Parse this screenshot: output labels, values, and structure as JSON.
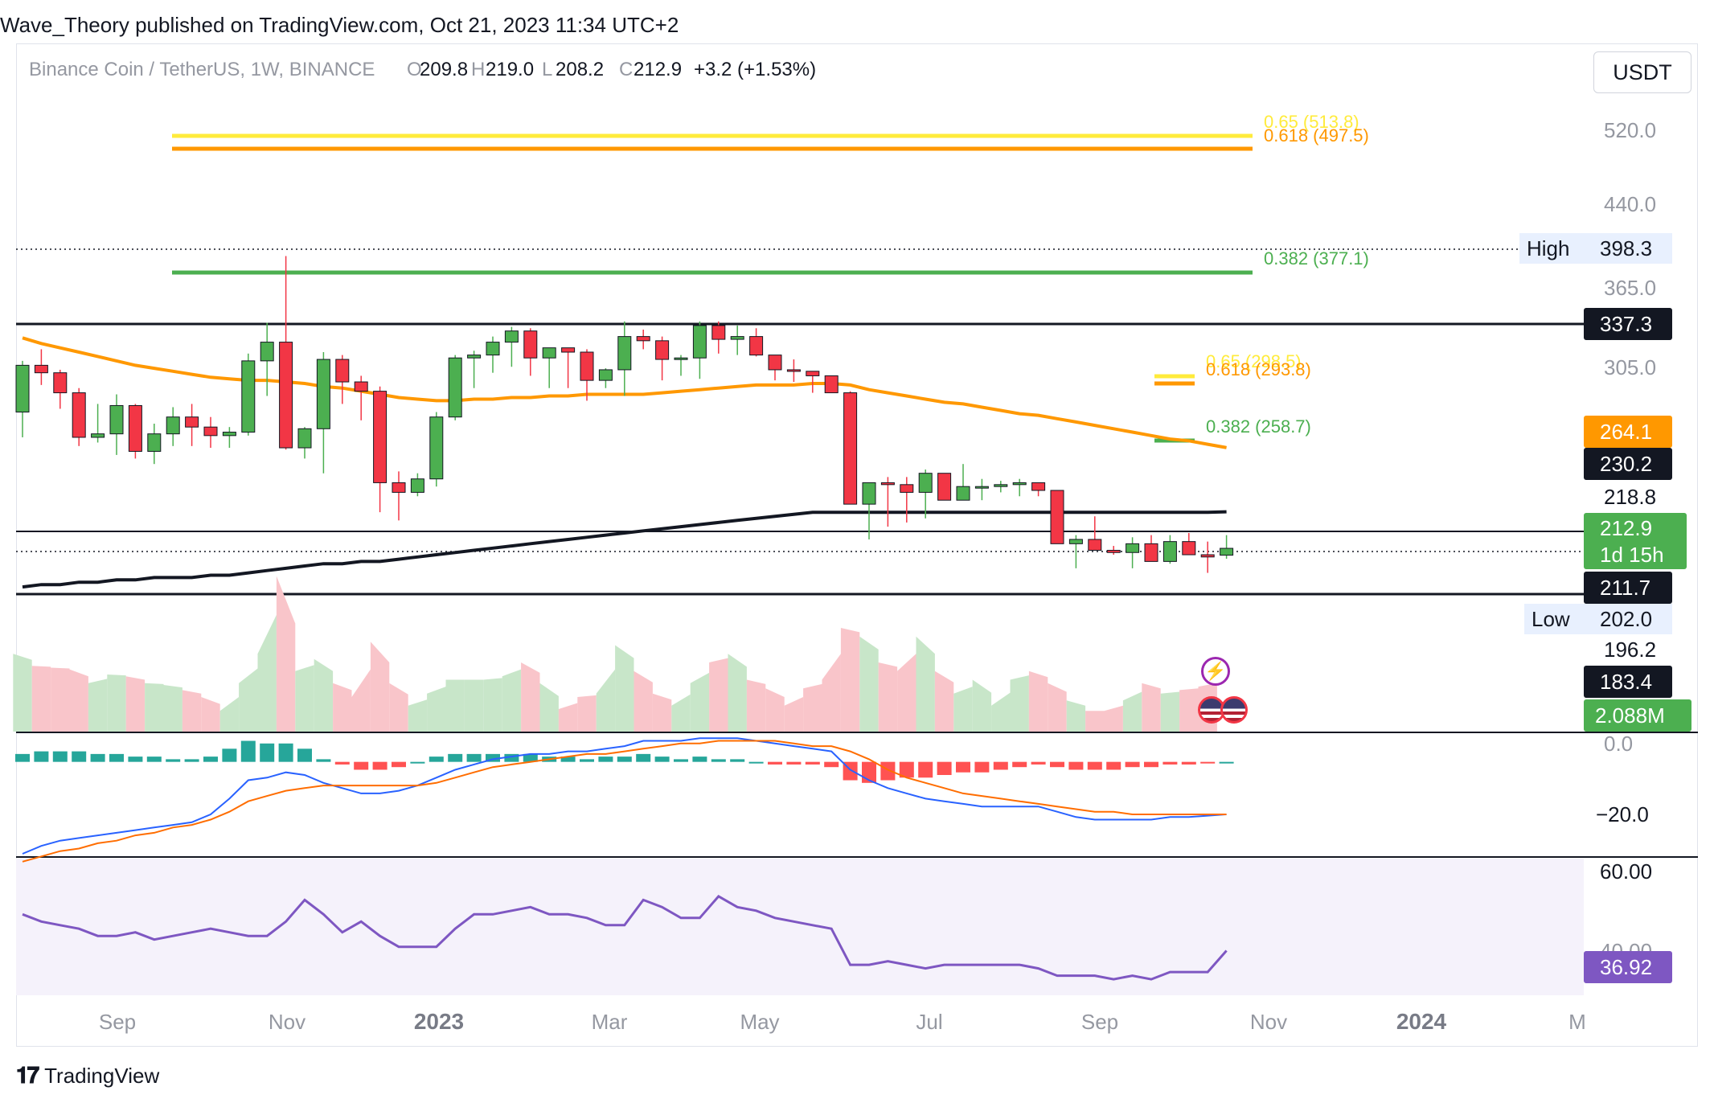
{
  "publisher_line": "Wave_Theory published on TradingView.com, Oct 21, 2023 11:34 UTC+2",
  "brand": "TradingView",
  "currency_button": "USDT",
  "legend": {
    "symbol": "Binance Coin / TetherUS, 1W, BINANCE",
    "o_label": "O",
    "o_value": "209.8",
    "h_label": "H",
    "h_value": "219.0",
    "l_label": "L",
    "l_value": "208.2",
    "c_label": "C",
    "c_value": "212.9",
    "change": "+3.2 (+1.53%)"
  },
  "colors": {
    "up": "#4caf50",
    "down": "#f23645",
    "ema50": "#ff9800",
    "ema200": "#131722",
    "fib_382": "#4caf50",
    "fib_618": "#ff9800",
    "fib_65": "#ffeb3b",
    "macd_line": "#2962ff",
    "signal_line": "#ff6d00",
    "rsi": "#7e57c2",
    "vol_up": "#c8e6c9",
    "vol_down": "#f9c5ca",
    "hist_up": "#26a69a",
    "hist_down": "#ff5252"
  },
  "fib_labels": {
    "upper_65": "0.65 (513.8)",
    "upper_618": "0.618 (497.5)",
    "upper_382": "0.382 (377.1)",
    "lower_65": "0.65 (298.5)",
    "lower_618": "0.618 (293.8)",
    "lower_382": "0.382 (258.7)"
  },
  "price_axis": {
    "ticks": [
      "520.0",
      "440.0",
      "365.0",
      "305.0",
      "218.8",
      "196.2"
    ],
    "high_label": "High",
    "high_value": "398.3",
    "low_label": "Low",
    "low_value": "202.0",
    "tag_resistance": "337.3",
    "tag_ema50": "264.1",
    "tag_ema200": "230.2",
    "tag_price": "212.9",
    "tag_countdown": "1d 15h",
    "tag_support": "211.7",
    "tag_lower": "183.4",
    "tag_volume": "2.088M"
  },
  "macd_axis": {
    "ticks": [
      "0.0",
      "−20.0"
    ]
  },
  "rsi_axis": {
    "ticks": [
      "60.00",
      "40.00"
    ],
    "tag_rsi": "36.92"
  },
  "time_axis": [
    "Sep",
    "Nov",
    "2023",
    "Mar",
    "May",
    "Jul",
    "Sep",
    "Nov",
    "2024",
    "M"
  ],
  "chart_data": {
    "type": "candlestick",
    "title": "Binance Coin / TetherUS, 1W, BINANCE",
    "price_scale": "log",
    "price_range": [
      183,
      560
    ],
    "candles_ohlc": [
      [
        285,
        318,
        270,
        315
      ],
      [
        315,
        326,
        302,
        310
      ],
      [
        310,
        312,
        287,
        297
      ],
      [
        297,
        300,
        265,
        270
      ],
      [
        270,
        290,
        267,
        272
      ],
      [
        272,
        296,
        260,
        289
      ],
      [
        289,
        290,
        258,
        262
      ],
      [
        262,
        278,
        255,
        272
      ],
      [
        272,
        288,
        265,
        282
      ],
      [
        282,
        290,
        265,
        276
      ],
      [
        276,
        282,
        264,
        271
      ],
      [
        271,
        276,
        264,
        273
      ],
      [
        273,
        323,
        271,
        318
      ],
      [
        318,
        345,
        295,
        331
      ],
      [
        331,
        398,
        263,
        264
      ],
      [
        264,
        276,
        258,
        275
      ],
      [
        275,
        324,
        250,
        319
      ],
      [
        319,
        322,
        290,
        304
      ],
      [
        304,
        308,
        280,
        298
      ],
      [
        298,
        301,
        230,
        245
      ],
      [
        245,
        251,
        226,
        240
      ],
      [
        240,
        250,
        238,
        247
      ],
      [
        247,
        285,
        243,
        282
      ],
      [
        282,
        322,
        280,
        320
      ],
      [
        320,
        325,
        300,
        322
      ],
      [
        322,
        335,
        310,
        331
      ],
      [
        331,
        342,
        314,
        339
      ],
      [
        339,
        341,
        308,
        320
      ],
      [
        320,
        326,
        300,
        327
      ],
      [
        327,
        327,
        300,
        324
      ],
      [
        324,
        326,
        292,
        305
      ],
      [
        305,
        313,
        300,
        312
      ],
      [
        312,
        346,
        295,
        335
      ],
      [
        335,
        340,
        326,
        332
      ],
      [
        332,
        335,
        305,
        319
      ],
      [
        319,
        322,
        308,
        320
      ],
      [
        320,
        346,
        306,
        343
      ],
      [
        343,
        346,
        323,
        333
      ],
      [
        333,
        343,
        322,
        335
      ],
      [
        335,
        341,
        321,
        322
      ],
      [
        322,
        320,
        305,
        312
      ],
      [
        312,
        319,
        304,
        311
      ],
      [
        311,
        310,
        297,
        308
      ],
      [
        308,
        305,
        297,
        297
      ],
      [
        297,
        298,
        234,
        234
      ],
      [
        234,
        244,
        217,
        245
      ],
      [
        245,
        248,
        223,
        244
      ],
      [
        244,
        248,
        225,
        240
      ],
      [
        240,
        252,
        227,
        250
      ],
      [
        250,
        248,
        236,
        236
      ],
      [
        236,
        255,
        236,
        243
      ],
      [
        243,
        247,
        236,
        243
      ],
      [
        243,
        246,
        240,
        244
      ],
      [
        244,
        247,
        238,
        245
      ],
      [
        245,
        245,
        238,
        241
      ],
      [
        241,
        239,
        215,
        215
      ],
      [
        215,
        219,
        204,
        217
      ],
      [
        217,
        228,
        212,
        212
      ],
      [
        212,
        214,
        210,
        211
      ],
      [
        211,
        218,
        204,
        215
      ],
      [
        215,
        219,
        210,
        207
      ],
      [
        207,
        219,
        206,
        216
      ],
      [
        216,
        220,
        210,
        210
      ],
      [
        210,
        216,
        202,
        209
      ],
      [
        209.8,
        219.0,
        208.2,
        212.9
      ]
    ],
    "ema50": [
      334,
      330,
      327,
      324,
      321,
      318,
      315,
      313,
      311,
      309,
      307,
      306,
      305,
      305,
      304,
      303,
      301,
      300,
      298,
      296,
      294,
      293,
      292,
      292,
      293,
      293,
      294,
      294,
      295,
      295,
      296,
      296,
      296,
      296,
      297,
      298,
      299,
      300,
      301,
      302,
      302,
      302,
      303,
      303,
      302,
      299,
      297,
      295,
      293,
      291,
      290,
      288,
      286,
      284,
      283,
      281,
      279,
      277,
      275,
      273,
      271,
      269,
      268,
      266,
      264.1
    ],
    "ema200": [
      196,
      197,
      197,
      198,
      198,
      199,
      199,
      200,
      200,
      200,
      201,
      201,
      202,
      203,
      204,
      205,
      206,
      206,
      207,
      207,
      208,
      209,
      210,
      211,
      212,
      213,
      214,
      215,
      216,
      217,
      218,
      219,
      220,
      221,
      222,
      223,
      224,
      225,
      226,
      227,
      228,
      229,
      230,
      230,
      230,
      230,
      230,
      230,
      230,
      230,
      230,
      230,
      230,
      230,
      230,
      230,
      230,
      230,
      230,
      230,
      230,
      230,
      230,
      230,
      230.2
    ],
    "horizontal_levels": {
      "resistance": 337.3,
      "support": 211.7,
      "dotted_high": 398.3,
      "dotted_low": 202.0
    },
    "fibonacci": {
      "upper": [
        {
          "ratio": 0.65,
          "price": 513.8
        },
        {
          "ratio": 0.618,
          "price": 497.5
        },
        {
          "ratio": 0.382,
          "price": 377.1
        }
      ],
      "lower": [
        {
          "ratio": 0.65,
          "price": 298.5
        },
        {
          "ratio": 0.618,
          "price": 293.8
        },
        {
          "ratio": 0.382,
          "price": 258.7
        }
      ]
    },
    "volume_last": "2.088M",
    "volume_relative": [
      0.45,
      0.38,
      0.37,
      0.36,
      0.28,
      0.33,
      0.32,
      0.28,
      0.27,
      0.24,
      0.2,
      0.12,
      0.28,
      0.45,
      0.9,
      0.35,
      0.42,
      0.28,
      0.2,
      0.52,
      0.28,
      0.15,
      0.22,
      0.3,
      0.3,
      0.3,
      0.32,
      0.4,
      0.28,
      0.13,
      0.2,
      0.22,
      0.5,
      0.35,
      0.22,
      0.15,
      0.28,
      0.4,
      0.45,
      0.3,
      0.25,
      0.15,
      0.25,
      0.3,
      0.6,
      0.55,
      0.4,
      0.35,
      0.55,
      0.35,
      0.22,
      0.3,
      0.15,
      0.3,
      0.35,
      0.28,
      0.18,
      0.12,
      0.12,
      0.18,
      0.28,
      0.22,
      0.24,
      0.26,
      0.3
    ],
    "macd_line": [
      -35,
      -32,
      -30,
      -29,
      -28,
      -27,
      -26,
      -25,
      -24,
      -23,
      -20,
      -14,
      -7,
      -6,
      -4,
      -5,
      -8,
      -10,
      -12,
      -12,
      -11,
      -9,
      -6,
      -3,
      -1,
      1,
      2,
      3,
      3,
      4,
      4,
      5,
      6,
      8,
      8,
      8,
      9,
      9,
      9,
      8,
      7,
      6,
      5,
      4,
      -3,
      -7,
      -10,
      -12,
      -14,
      -15,
      -16,
      -17,
      -17,
      -17,
      -17,
      -19,
      -21,
      -22,
      -22,
      -22,
      -22,
      -21,
      -21,
      -20.5,
      -20
    ],
    "signal_line": [
      -38,
      -36,
      -34,
      -33,
      -31,
      -30,
      -28,
      -27,
      -25,
      -24,
      -22,
      -19,
      -15,
      -13,
      -11,
      -10,
      -9,
      -9,
      -9,
      -9,
      -9,
      -9,
      -8,
      -6,
      -4,
      -2,
      -1,
      0,
      1,
      2,
      3,
      3,
      4,
      5,
      6,
      7,
      7,
      8,
      8,
      8,
      8,
      7,
      6,
      6,
      4,
      1,
      -3,
      -6,
      -8,
      -10,
      -12,
      -13,
      -14,
      -15,
      -16,
      -17,
      -18,
      -19,
      -19,
      -20,
      -20,
      -20,
      -20,
      -20,
      -20
    ],
    "rsi": [
      47,
      45,
      44,
      43,
      41,
      41,
      42,
      40,
      41,
      42,
      43,
      42,
      41,
      41,
      45,
      51,
      47,
      42,
      45,
      41,
      38,
      38,
      38,
      43,
      47,
      47,
      48,
      49,
      47,
      47,
      46,
      44,
      44,
      51,
      49,
      46,
      46,
      52,
      49,
      48,
      46,
      45,
      44,
      43,
      33,
      33,
      34,
      33,
      32,
      33,
      33,
      33,
      33,
      33,
      32,
      30,
      30,
      30,
      29,
      30,
      29,
      31,
      31,
      31,
      36.92
    ],
    "rsi_range": [
      25,
      62
    ],
    "macd_range": [
      -35,
      10
    ]
  }
}
